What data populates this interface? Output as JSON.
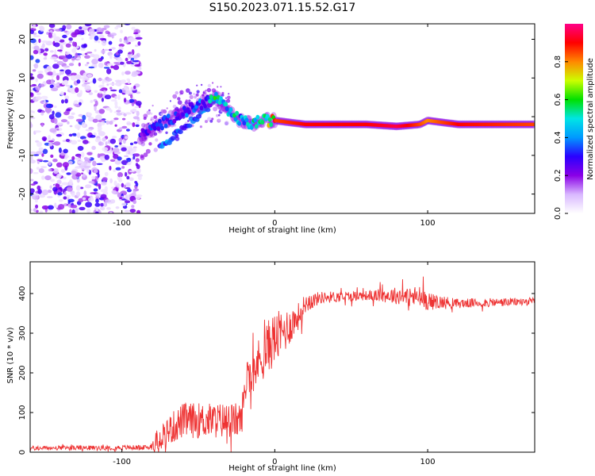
{
  "title": "S150.2023.071.15.52.G17",
  "spectrogram": {
    "type": "heatmap",
    "xlabel": "Height of straight line (km)",
    "ylabel": "Frequency (Hz)",
    "xlim": [
      -160,
      170
    ],
    "ylim": [
      -25,
      24
    ],
    "xticks": [
      -100,
      0,
      100
    ],
    "xtick_labels": [
      "-100",
      "0",
      "100"
    ],
    "yticks": [
      -20,
      -10,
      0,
      10,
      20
    ],
    "ytick_labels": [
      "-20",
      "-10",
      "0",
      "10",
      "20"
    ],
    "noise_region_km": [
      -160,
      -88
    ],
    "ridge": {
      "x": [
        -88,
        -75,
        -60,
        -45,
        -38,
        -30,
        -22,
        -15,
        -10,
        0,
        20,
        60,
        80,
        95,
        100,
        120,
        170
      ],
      "y": [
        -5,
        -2,
        1,
        4,
        5,
        1,
        -1,
        -2,
        -1,
        -1,
        -2,
        -2,
        -2.5,
        -2,
        -1,
        -2,
        -2
      ],
      "amplitude": [
        0.3,
        0.35,
        0.35,
        0.4,
        0.6,
        0.55,
        0.5,
        0.55,
        0.6,
        0.85,
        0.9,
        0.9,
        0.95,
        0.85,
        0.8,
        0.9,
        0.85
      ]
    }
  },
  "colorbar": {
    "label": "Normalized spectral amplitude",
    "ticks": [
      0.0,
      0.2,
      0.4,
      0.6,
      0.8
    ],
    "tick_labels": [
      "0.0",
      "0.2",
      "0.4",
      "0.6",
      "0.8"
    ],
    "range": [
      0,
      1
    ],
    "stops": [
      "#ffffff",
      "#d9b8ff",
      "#8a00e6",
      "#2a00ff",
      "#0099ff",
      "#00e5e5",
      "#00e000",
      "#ccff00",
      "#ff8800",
      "#ff0000",
      "#ff0088"
    ]
  },
  "snr": {
    "type": "line",
    "xlabel": "Height of straight line (km)",
    "ylabel": "SNR (10 * v/v)",
    "xlim": [
      -160,
      170
    ],
    "ylim": [
      0,
      480
    ],
    "xticks": [
      -100,
      0,
      100
    ],
    "xtick_labels": [
      "-100",
      "0",
      "100"
    ],
    "yticks": [
      0,
      100,
      200,
      300,
      400
    ],
    "ytick_labels": [
      "0",
      "100",
      "200",
      "300",
      "400"
    ],
    "color": "#ee3333",
    "trend": {
      "x": [
        -160,
        -82,
        -75,
        -60,
        -45,
        -30,
        -22,
        -18,
        -10,
        -2,
        5,
        15,
        20,
        30,
        60,
        80,
        95,
        100,
        120,
        170
      ],
      "y": [
        10,
        12,
        40,
        80,
        80,
        80,
        80,
        200,
        230,
        280,
        300,
        340,
        375,
        390,
        395,
        395,
        390,
        380,
        375,
        380
      ],
      "noise": [
        6,
        6,
        35,
        45,
        45,
        45,
        45,
        55,
        60,
        70,
        60,
        35,
        25,
        15,
        12,
        22,
        30,
        22,
        12,
        10
      ]
    }
  }
}
